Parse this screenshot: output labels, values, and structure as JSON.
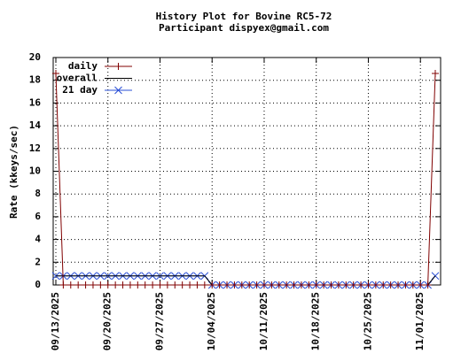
{
  "chart_data": {
    "type": "line",
    "title": "History Plot for Bovine RC5-72",
    "subtitle": "Participant dispyex@gmail.com",
    "y_label": "Rate (kkeys/sec)",
    "x": [
      "09/13/2025",
      "09/14/2025",
      "09/15/2025",
      "09/16/2025",
      "09/17/2025",
      "09/18/2025",
      "09/19/2025",
      "09/20/2025",
      "09/21/2025",
      "09/22/2025",
      "09/23/2025",
      "09/24/2025",
      "09/25/2025",
      "09/26/2025",
      "09/27/2025",
      "09/28/2025",
      "09/29/2025",
      "09/30/2025",
      "10/01/2025",
      "10/02/2025",
      "10/03/2025",
      "10/04/2025",
      "10/05/2025",
      "10/06/2025",
      "10/07/2025",
      "10/08/2025",
      "10/09/2025",
      "10/10/2025",
      "10/11/2025",
      "10/12/2025",
      "10/13/2025",
      "10/14/2025",
      "10/15/2025",
      "10/16/2025",
      "10/17/2025",
      "10/18/2025",
      "10/19/2025",
      "10/20/2025",
      "10/21/2025",
      "10/22/2025",
      "10/23/2025",
      "10/24/2025",
      "10/25/2025",
      "10/26/2025",
      "10/27/2025",
      "10/28/2025",
      "10/29/2025",
      "10/30/2025",
      "10/31/2025",
      "11/01/2025",
      "11/02/2025",
      "11/03/2025"
    ],
    "series": [
      {
        "name": "daily",
        "color": "#800000",
        "marker": "plus",
        "values": [
          18.6,
          0,
          0,
          0,
          0,
          0,
          0,
          0,
          0,
          0,
          0,
          0,
          0,
          0,
          0,
          0,
          0,
          0,
          0,
          0,
          0,
          0,
          0,
          0,
          0,
          0,
          0,
          0,
          0,
          0,
          0,
          0,
          0,
          0,
          0,
          0,
          0,
          0,
          0,
          0,
          0,
          0,
          0,
          0,
          0,
          0,
          0,
          0,
          0,
          0,
          0,
          18.6
        ]
      },
      {
        "name": "overall",
        "color": "#000000",
        "values": [
          0.8,
          0.8,
          0.8,
          0.8,
          0.8,
          0.8,
          0.8,
          0.8,
          0.8,
          0.8,
          0.8,
          0.8,
          0.8,
          0.8,
          0.8,
          0.8,
          0.8,
          0.8,
          0.8,
          0.8,
          0.8,
          0,
          0,
          0,
          0,
          0,
          0,
          0,
          0,
          0,
          0,
          0,
          0,
          0,
          0,
          0,
          0,
          0,
          0,
          0,
          0,
          0,
          0,
          0,
          0,
          0,
          0,
          0,
          0,
          0,
          0,
          0.8
        ]
      },
      {
        "name": "21 day",
        "color": "#2a4fd6",
        "marker": "cross",
        "values": [
          0.8,
          0.8,
          0.8,
          0.8,
          0.8,
          0.8,
          0.8,
          0.8,
          0.8,
          0.8,
          0.8,
          0.8,
          0.8,
          0.8,
          0.8,
          0.8,
          0.8,
          0.8,
          0.8,
          0.8,
          0.8,
          0,
          0,
          0,
          0,
          0,
          0,
          0,
          0,
          0,
          0,
          0,
          0,
          0,
          0,
          0,
          0,
          0,
          0,
          0,
          0,
          0,
          0,
          0,
          0,
          0,
          0,
          0,
          0,
          0,
          0,
          0.8
        ]
      }
    ],
    "xlim": [
      "09/13/2025",
      "11/03/2025"
    ],
    "xticks": [
      "09/13/2025",
      "09/20/2025",
      "09/27/2025",
      "10/04/2025",
      "10/11/2025",
      "10/18/2025",
      "10/25/2025",
      "11/01/2025"
    ],
    "ylim": [
      0,
      20
    ],
    "yticks": [
      0,
      2,
      4,
      6,
      8,
      10,
      12,
      14,
      16,
      18,
      20
    ],
    "grid": true,
    "legend": "upper-left"
  }
}
